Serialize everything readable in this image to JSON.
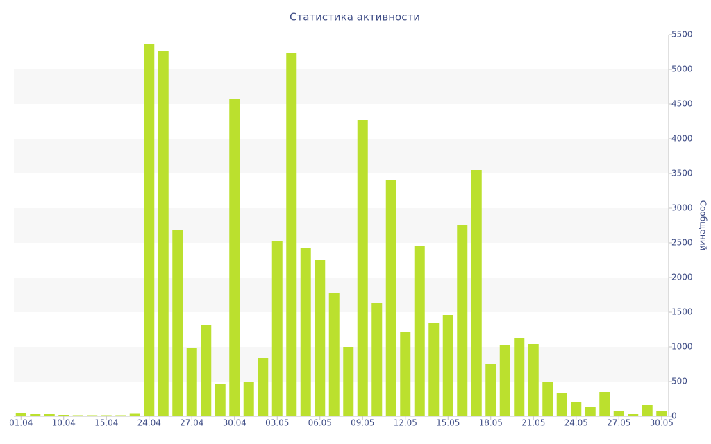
{
  "chart_data": {
    "type": "bar",
    "title": "Статистика активности",
    "y_axis_label": "Сообщений",
    "categories": [
      "01.04",
      null,
      null,
      "10.04",
      null,
      null,
      "15.04",
      null,
      null,
      "24.04",
      null,
      null,
      "27.04",
      null,
      null,
      "30.04",
      null,
      null,
      "03.05",
      null,
      null,
      "06.05",
      null,
      null,
      "09.05",
      null,
      null,
      "12.05",
      null,
      null,
      "15.05",
      null,
      null,
      "18.05",
      null,
      null,
      "21.05",
      null,
      null,
      "24.05",
      null,
      null,
      "27.05",
      null,
      null,
      "30.05"
    ],
    "values": [
      45,
      30,
      30,
      20,
      15,
      15,
      15,
      15,
      35,
      5370,
      5270,
      2680,
      990,
      1320,
      470,
      4580,
      490,
      840,
      2520,
      5240,
      2420,
      2250,
      1780,
      1000,
      4270,
      1630,
      3410,
      1220,
      2450,
      1350,
      1460,
      2750,
      3550,
      750,
      1020,
      1130,
      1040,
      500,
      330,
      210,
      140,
      350,
      80,
      30,
      160,
      70
    ],
    "color": "#bbe02e",
    "ylim": [
      0,
      5500
    ],
    "yticks": [
      0,
      500,
      1000,
      1500,
      2000,
      2500,
      3000,
      3500,
      4000,
      4500,
      5000,
      5500
    ],
    "grid": true
  }
}
